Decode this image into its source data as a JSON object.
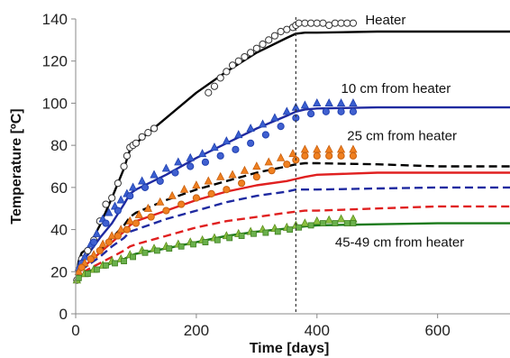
{
  "chart_data": {
    "type": "line",
    "title": "",
    "xlabel": "Time [days]",
    "ylabel": "Temperature [ºC]",
    "xlim": [
      0,
      720
    ],
    "ylim": [
      0,
      140
    ],
    "xticks": [
      0,
      200,
      400,
      600
    ],
    "yticks": [
      0,
      20,
      40,
      60,
      80,
      100,
      120,
      140
    ],
    "grid": false,
    "reference_line": {
      "x": 365,
      "style": "dashed"
    },
    "annotations": [
      {
        "text": "Heater",
        "x": 480,
        "y": 137.5
      },
      {
        "text": "10 cm from heater",
        "x": 440,
        "y": 105
      },
      {
        "text": "25 cm from heater",
        "x": 450,
        "y": 82.5
      },
      {
        "text": "45-49 cm from heater",
        "x": 430,
        "y": 32
      }
    ],
    "series": [
      {
        "kind": "line",
        "color": "#000000",
        "dash": "solid",
        "x": [
          0,
          5,
          10,
          20,
          40,
          60,
          80,
          90,
          100,
          150,
          200,
          250,
          300,
          350,
          365,
          380,
          400,
          500,
          600,
          720
        ],
        "y": [
          15,
          25,
          29,
          31,
          42,
          55,
          69,
          78,
          81,
          93,
          105,
          115,
          124,
          131,
          133,
          133.5,
          133.5,
          134,
          134,
          134
        ]
      },
      {
        "kind": "line",
        "color": "#1f2aa0",
        "dash": "solid",
        "x": [
          0,
          5,
          10,
          20,
          40,
          60,
          80,
          90,
          100,
          150,
          200,
          250,
          300,
          350,
          365,
          380,
          400,
          500,
          600,
          720
        ],
        "y": [
          15,
          22,
          25,
          28,
          36,
          43,
          52,
          57,
          59,
          66,
          74,
          81,
          88,
          94,
          96,
          97,
          97.5,
          98,
          98,
          98
        ]
      },
      {
        "kind": "line",
        "color": "#000000",
        "dash": "dashed",
        "x": [
          0,
          5,
          10,
          20,
          40,
          60,
          80,
          90,
          100,
          150,
          200,
          250,
          300,
          350,
          365,
          380,
          400,
          500,
          600,
          720
        ],
        "y": [
          15,
          20,
          22,
          24,
          30,
          36,
          42,
          46,
          48,
          54,
          59,
          63,
          67,
          70,
          71,
          71.5,
          71.5,
          71,
          70,
          70
        ]
      },
      {
        "kind": "line",
        "color": "#e02020",
        "dash": "solid",
        "x": [
          0,
          5,
          10,
          20,
          40,
          60,
          80,
          90,
          100,
          150,
          200,
          250,
          300,
          350,
          365,
          380,
          400,
          500,
          600,
          720
        ],
        "y": [
          15,
          20,
          22,
          24,
          29,
          34,
          39,
          42,
          44,
          49,
          54,
          58,
          61,
          63,
          64,
          65,
          66,
          67,
          67,
          67
        ]
      },
      {
        "kind": "line",
        "color": "#1f2aa0",
        "dash": "dashed",
        "x": [
          0,
          5,
          10,
          20,
          40,
          60,
          80,
          90,
          100,
          150,
          200,
          250,
          300,
          350,
          365,
          380,
          400,
          500,
          600,
          720
        ],
        "y": [
          15,
          19,
          21,
          23,
          27,
          32,
          36,
          39,
          40,
          45,
          49,
          53,
          56,
          58,
          59,
          59,
          59,
          59.5,
          60,
          60
        ]
      },
      {
        "kind": "line",
        "color": "#e02020",
        "dash": "dashed",
        "x": [
          0,
          5,
          10,
          20,
          40,
          60,
          80,
          90,
          100,
          150,
          200,
          250,
          300,
          350,
          365,
          380,
          400,
          500,
          600,
          720
        ],
        "y": [
          15,
          18,
          19,
          21,
          24,
          27,
          30,
          32,
          33,
          37,
          41,
          44,
          46,
          48,
          48.5,
          49,
          49,
          50,
          51,
          51
        ]
      },
      {
        "kind": "line",
        "color": "#1a7a1a",
        "dash": "solid",
        "x": [
          0,
          5,
          10,
          20,
          40,
          60,
          80,
          90,
          100,
          150,
          200,
          250,
          300,
          350,
          365,
          380,
          400,
          500,
          600,
          720
        ],
        "y": [
          15,
          17,
          18,
          20,
          22,
          24,
          26,
          27.5,
          28.5,
          31,
          34,
          37,
          39,
          40.5,
          41,
          41.5,
          42,
          42.5,
          43,
          43
        ]
      },
      {
        "kind": "scatter",
        "marker": "circle",
        "color": "#ffffff",
        "stroke": "#333333",
        "x": [
          2,
          10,
          20,
          30,
          40,
          50,
          60,
          70,
          80,
          85,
          90,
          95,
          100,
          110,
          120,
          130,
          220,
          230,
          240,
          250,
          260,
          270,
          280,
          290,
          300,
          310,
          320,
          330,
          340,
          350,
          360,
          365,
          370,
          380,
          390,
          400,
          410,
          420,
          430,
          440,
          450,
          460
        ],
        "y": [
          16,
          26,
          30,
          35,
          44,
          52,
          55,
          62,
          70,
          75,
          79,
          80,
          81,
          84,
          86,
          88,
          105,
          108,
          112,
          115,
          118,
          120,
          122,
          124,
          126,
          128,
          130,
          132,
          134,
          135,
          136,
          137,
          138,
          138,
          138,
          138,
          138,
          137,
          138,
          138,
          138,
          138
        ]
      },
      {
        "kind": "scatter",
        "marker": "triangle",
        "color": "#3a5fd0",
        "stroke": "#2040b0",
        "x": [
          5,
          15,
          25,
          35,
          45,
          55,
          65,
          75,
          85,
          95,
          110,
          130,
          150,
          170,
          190,
          210,
          230,
          250,
          270,
          290,
          310,
          330,
          350,
          365,
          380,
          400,
          420,
          440,
          460
        ],
        "y": [
          22,
          27,
          33,
          38,
          45,
          48,
          51,
          54,
          57,
          60,
          63,
          66,
          69,
          72,
          74,
          76,
          79,
          82,
          85,
          88,
          90,
          93,
          96,
          98,
          99,
          100,
          100,
          100,
          100
        ]
      },
      {
        "kind": "scatter",
        "marker": "circle",
        "color": "#4060d0",
        "stroke": "#2040b0",
        "x": [
          10,
          30,
          50,
          70,
          90,
          115,
          140,
          165,
          190,
          215,
          240,
          265,
          290,
          315,
          340,
          365,
          390,
          415,
          440,
          460
        ],
        "y": [
          24,
          34,
          43,
          49,
          56,
          60,
          63,
          67,
          70,
          72,
          75,
          78,
          81,
          85,
          89,
          93,
          95,
          96,
          96,
          96
        ]
      },
      {
        "kind": "scatter",
        "marker": "triangle",
        "color": "#f08020",
        "stroke": "#c86010",
        "x": [
          5,
          15,
          30,
          45,
          60,
          75,
          90,
          105,
          120,
          140,
          160,
          180,
          200,
          220,
          240,
          260,
          280,
          300,
          320,
          340,
          360,
          380,
          400,
          420,
          440,
          460
        ],
        "y": [
          20,
          24,
          28,
          33,
          37,
          40,
          44,
          47,
          50,
          53,
          56,
          59,
          61,
          63,
          65,
          66,
          68,
          70,
          72,
          74,
          76,
          78,
          78,
          78,
          78,
          78
        ]
      },
      {
        "kind": "scatter",
        "marker": "circle",
        "color": "#f08020",
        "stroke": "#c86010",
        "x": [
          10,
          25,
          40,
          55,
          70,
          85,
          100,
          125,
          150,
          175,
          200,
          225,
          250,
          275,
          300,
          325,
          350,
          365,
          380,
          400,
          420,
          440,
          460
        ],
        "y": [
          22,
          26,
          30,
          34,
          37,
          40,
          43,
          46,
          49,
          52,
          55,
          57,
          59,
          62,
          65,
          68,
          71,
          73,
          75,
          75,
          75,
          75,
          75
        ]
      },
      {
        "kind": "scatter",
        "marker": "triangle",
        "color": "#8dc040",
        "stroke": "#5a9020",
        "x": [
          2,
          15,
          30,
          45,
          60,
          75,
          90,
          110,
          130,
          150,
          170,
          190,
          210,
          230,
          250,
          270,
          290,
          310,
          330,
          350,
          365,
          380,
          400,
          420,
          440,
          460
        ],
        "y": [
          16,
          19,
          21,
          23,
          25,
          26,
          28,
          30,
          31,
          32,
          33,
          34,
          35,
          36,
          37,
          38,
          39,
          40,
          40.5,
          41,
          42,
          43,
          44,
          44.5,
          45,
          45
        ]
      },
      {
        "kind": "scatter",
        "marker": "square",
        "color": "#6ab04c",
        "stroke": "#3f8020",
        "x": [
          5,
          20,
          35,
          50,
          65,
          80,
          95,
          115,
          135,
          155,
          175,
          195,
          215,
          235,
          255,
          275,
          295,
          315,
          335,
          355,
          370,
          390,
          410,
          430,
          450,
          460
        ],
        "y": [
          17,
          19,
          21,
          23,
          24,
          25,
          27,
          29,
          30,
          31,
          32,
          33,
          34,
          35,
          36,
          37,
          38,
          38.5,
          39,
          40,
          41,
          42,
          43,
          43,
          43,
          43
        ]
      }
    ]
  }
}
